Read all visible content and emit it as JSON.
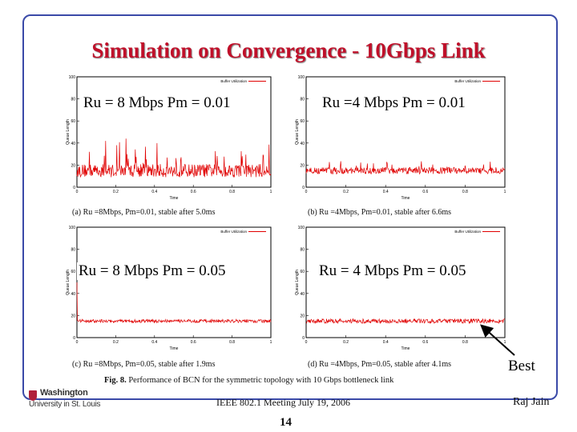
{
  "slide": {
    "title": "Simulation on Convergence - 10Gbps Link",
    "overlays": [
      "Ru = 8 Mbps Pm = 0.01",
      "Ru =4 Mbps Pm = 0.01",
      "Ru = 8 Mbps Pm = 0.05",
      "Ru = 4 Mbps Pm = 0.05"
    ],
    "best_label": "Best",
    "figure_caption_prefix": "Fig. 8.",
    "figure_caption_text": "Performance of BCN for the symmetric topology with 10 Gbps bottleneck link",
    "footer": "IEEE 802.1 Meeting July 19, 2006",
    "author": "Raj Jain",
    "page_number": "14",
    "logo_line1": "Washington",
    "logo_line2": "University in St. Louis"
  },
  "chart_data": [
    {
      "type": "line",
      "panel": "(a)",
      "caption": "(a) Ru =8Mbps, Pm=0.01, stable after 5.0ms",
      "series": [
        {
          "name": "Buffer Utilization",
          "mean": 15,
          "noise": 6,
          "spikes": 30
        }
      ],
      "xlabel": "Time",
      "ylabel": "Queue Length",
      "x_ticks": [
        "0",
        "0.2",
        "0.4",
        "0.6",
        "0.8",
        "1"
      ],
      "y_ticks": [
        "0",
        "20",
        "40",
        "60",
        "80",
        "100"
      ],
      "xlim": [
        0,
        1
      ],
      "ylim": [
        0,
        100
      ]
    },
    {
      "type": "line",
      "panel": "(b)",
      "caption": "(b) Ru =4Mbps, Pm=0.01, stable after 6.6ms",
      "series": [
        {
          "name": "Buffer Utilization",
          "mean": 15,
          "noise": 3,
          "spikes": 10
        }
      ],
      "xlabel": "Time",
      "ylabel": "Queue Length",
      "x_ticks": [
        "0",
        "0.2",
        "0.4",
        "0.6",
        "0.8",
        "1"
      ],
      "y_ticks": [
        "0",
        "20",
        "40",
        "60",
        "80",
        "100"
      ],
      "xlim": [
        0,
        1
      ],
      "ylim": [
        0,
        100
      ]
    },
    {
      "type": "line",
      "panel": "(c)",
      "caption": "(c) Ru =8Mbps, Pm=0.05, stable after 1.9ms",
      "series": [
        {
          "name": "Buffer Utilization",
          "mean": 15,
          "noise": 1.5,
          "spikes": 0
        }
      ],
      "xlabel": "Time",
      "ylabel": "Queue Length",
      "x_ticks": [
        "0",
        "0.2",
        "0.4",
        "0.6",
        "0.8",
        "1"
      ],
      "y_ticks": [
        "0",
        "20",
        "40",
        "60",
        "80",
        "100"
      ],
      "xlim": [
        0,
        1
      ],
      "ylim": [
        0,
        100
      ]
    },
    {
      "type": "line",
      "panel": "(d)",
      "caption": "(d) Ru =4Mbps, Pm=0.05, stable after 4.1ms",
      "series": [
        {
          "name": "Buffer Utilization",
          "mean": 15,
          "noise": 2,
          "spikes": 0
        }
      ],
      "xlabel": "Time",
      "ylabel": "Queue Length",
      "x_ticks": [
        "0",
        "0.2",
        "0.4",
        "0.6",
        "0.8",
        "1"
      ],
      "y_ticks": [
        "0",
        "20",
        "40",
        "60",
        "80",
        "100"
      ],
      "xlim": [
        0,
        1
      ],
      "ylim": [
        0,
        100
      ]
    }
  ],
  "colors": {
    "title": "#c0102a",
    "frame": "#3a4aa8",
    "series": "#e00000"
  }
}
